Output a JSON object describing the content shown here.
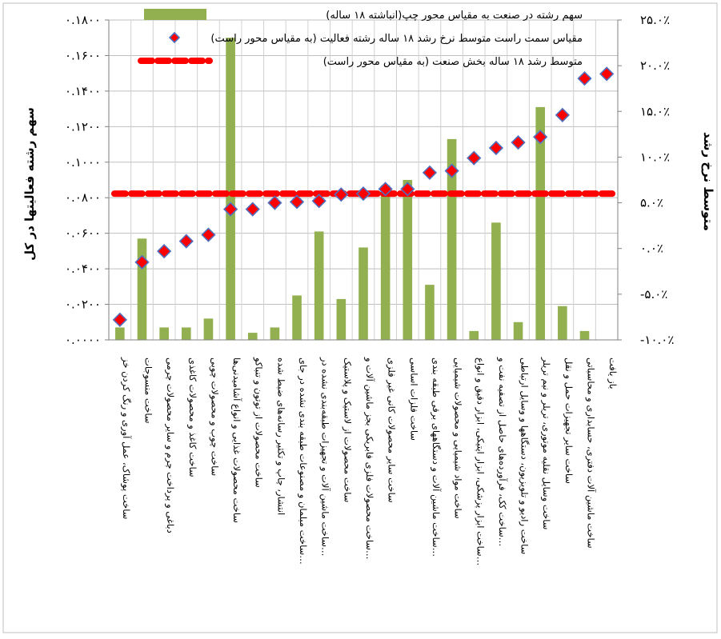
{
  "chart_data": {
    "type": "bar+scatter",
    "ylabel_left": "سهم رشته فعالیتها در کل",
    "ylabel_right": "متوسط نرخ رشد",
    "ylim_left": [
      0,
      0.18
    ],
    "ylim_right": [
      -0.1,
      0.25
    ],
    "yticks_left": [
      0,
      0.02,
      0.04,
      0.06,
      0.08,
      0.1,
      0.12,
      0.14,
      0.16,
      0.18
    ],
    "yticks_left_labels": [
      "۰.۰۰۰۰",
      "۰.۰۲۰۰",
      "۰.۰۴۰۰",
      "۰.۰۶۰۰",
      "۰.۰۸۰۰",
      "۰.۱۰۰۰",
      "۰.۱۲۰۰",
      "۰.۱۴۰۰",
      "۰.۱۶۰۰",
      "۰.۱۸۰۰"
    ],
    "yticks_right": [
      -0.1,
      -0.05,
      0.0,
      0.05,
      0.1,
      0.15,
      0.2,
      0.25
    ],
    "yticks_right_labels": [
      "-۱۰.۰٪",
      "-۵.۰٪",
      "۰.۰٪",
      "۵.۰٪",
      "۱۰.۰٪",
      "۱۵.۰٪",
      "۲۰.۰٪",
      "۲۵.۰٪"
    ],
    "categories": [
      "ساخت پوشاک، عمل آوری و رنگ کردن خز",
      "ساخت منسوجات",
      "دباغی و پرداخت چرم و سایر محصولات چرمی",
      "ساخت کاغذ و محصولات کاغذی",
      "ساخت چوب و محصولات چوبی",
      "ساخت محصولات غذایی و انواع آشامیدنی‌ها",
      "ساخت محصولات از توتون و تنباکو",
      "انتشار، چاپ و تکثیر رسانه‌های ضبط شده",
      "ساخت مبلمان و مصنوعات طبقه بندی نشده در جای…",
      "ساخت ماشین آلات و تجهیزات طبقه‌بندی نشده در…",
      "ساخت محصولات از لاستیک و پلاستیک",
      "ساخت محصولات فلزی فابریکی بجز ماشین آلات و…",
      "ساخت سایر محصولات کانی غیر فلزی",
      "ساخت فلزات اساسی",
      "ساخت ماشین آلات و دستگاههای برقی طبقه بندی…",
      "ساخت مواد شیمیایی و محصولات شیمیایی",
      "ساخت ابزار پزشکی، ابزار اپتیکی، ابزار دقیق و انواع…",
      "ساخت کک، فرآورده‌های حاصل از تصفیه نفت و…",
      "ساخت رادیو و تلویزیون، دستگاهها و وسایل ارتباطی",
      "ساخت وسایل نقلیه موتوری، تریلر و نیم تریلر",
      "ساخت سایر تجهیزات حمل و نقل",
      "ساخت ماشین آلات دفتری، حسابداری و محاسباتی",
      "باز یافت"
    ],
    "series": [
      {
        "name": "سهم رشته در صنعت به مقیاس محور چپ(انباشته ۱۸ ساله)",
        "kind": "bar",
        "axis": "left",
        "color": "#92b050",
        "values": [
          0.007,
          0.057,
          0.007,
          0.007,
          0.012,
          0.17,
          0.004,
          0.007,
          0.025,
          0.061,
          0.023,
          0.052,
          0.087,
          0.09,
          0.031,
          0.113,
          0.005,
          0.066,
          0.01,
          0.131,
          0.019,
          0.005,
          0.0
        ]
      },
      {
        "name": "مقیاس سمت راست متوسط نرخ رشد ۱۸ ساله رشته فعالیت (به مقیاس محور راست)",
        "kind": "scatter",
        "axis": "right",
        "color": "#ff0000",
        "edge": "#4f6fbf",
        "values": [
          -0.078,
          -0.015,
          -0.003,
          0.008,
          0.015,
          0.043,
          0.043,
          0.05,
          0.051,
          0.052,
          0.059,
          0.06,
          0.065,
          0.065,
          0.083,
          0.085,
          0.099,
          0.11,
          0.116,
          0.122,
          0.146,
          0.186,
          0.191
        ]
      },
      {
        "name": "متوسط رشد ۱۸ ساله بخش صنعت (به مقیاس محور راست)",
        "kind": "line",
        "axis": "right",
        "color": "#ff0000",
        "style": "dashed",
        "value": 0.06
      }
    ],
    "legend_position": "top"
  }
}
